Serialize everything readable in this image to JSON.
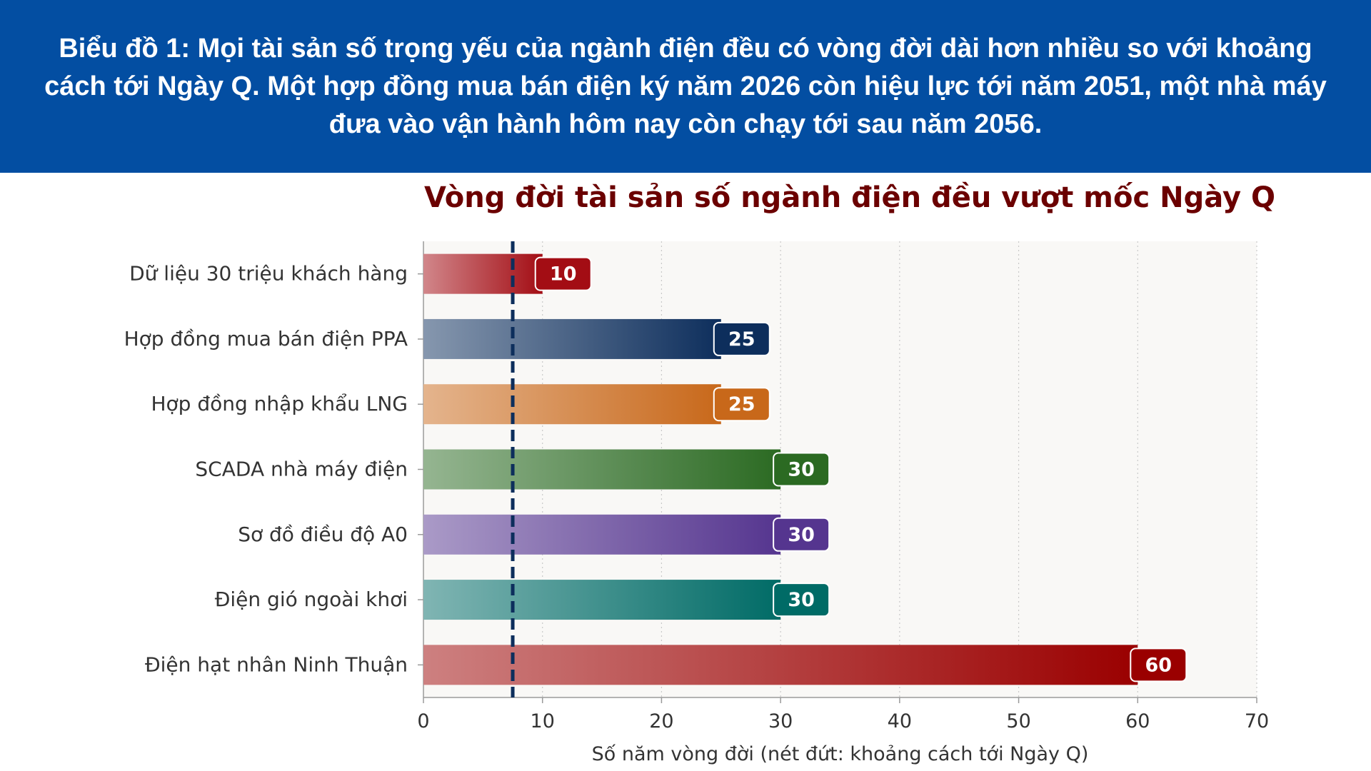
{
  "banner": {
    "text": "Biểu đồ 1: Mọi tài sản số trọng yếu của ngành điện đều có vòng đời dài hơn nhiều so với khoảng cách tới Ngày Q. Một hợp đồng mua bán điện ký năm 2026 còn hiệu lực tới năm 2051, một nhà máy đưa vào vận hành hôm nay còn chạy tới sau năm 2056.",
    "background": "#034ea2"
  },
  "chart_data": {
    "type": "bar",
    "orientation": "horizontal",
    "title": "Vòng đời tài sản số ngành điện đều vượt mốc Ngày Q",
    "xlabel": "Số năm vòng đời (nét đứt: khoảng cách tới Ngày Q)",
    "ylabel": "",
    "xlim": [
      0,
      70
    ],
    "xticks": [
      0,
      10,
      20,
      30,
      40,
      50,
      60,
      70
    ],
    "grid": "vertical dotted",
    "categories": [
      "Dữ liệu 30 triệu khách hàng",
      "Hợp đồng mua bán điện PPA",
      "Hợp đồng nhập khẩu LNG",
      "SCADA nhà máy điện",
      "Sơ đồ điều độ A0",
      "Điện gió ngoài khơi",
      "Điện hạt nhân Ninh Thuận"
    ],
    "values": [
      10,
      25,
      25,
      30,
      30,
      30,
      60
    ],
    "value_labels": [
      "10",
      "25",
      "25",
      "30",
      "30",
      "30",
      "60"
    ],
    "colors": [
      "#a30d14",
      "#0d2e5c",
      "#c8681a",
      "#2b6a22",
      "#55358f",
      "#006b66",
      "#9a0000"
    ],
    "reference_line": {
      "value": 7.5,
      "style": "dashed",
      "color": "#0d2e5c"
    }
  }
}
